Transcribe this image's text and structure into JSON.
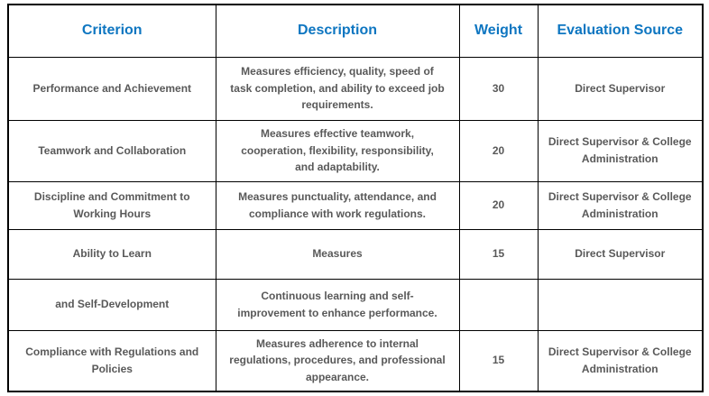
{
  "colors": {
    "header_text": "#0e76c1",
    "body_text": "#595959",
    "border": "#000000",
    "background": "#ffffff"
  },
  "table": {
    "headers": [
      "Criterion",
      "Description",
      "Weight",
      "Evaluation Source"
    ],
    "rows": [
      {
        "criterion": "Performance and Achievement",
        "description": "Measures efficiency, quality, speed of\ntask completion, and ability to exceed job\nrequirements.",
        "weight": "30",
        "source": "Direct Supervisor"
      },
      {
        "criterion": "Teamwork and Collaboration",
        "description": "Measures effective teamwork,\ncooperation, flexibility, responsibility,\nand adaptability.",
        "weight": "20",
        "source": "Direct Supervisor & College\nAdministration"
      },
      {
        "criterion": "Discipline and Commitment to\nWorking Hours",
        "description": "Measures punctuality, attendance, and\ncompliance with work regulations.",
        "weight": "20",
        "source": "Direct Supervisor & College\nAdministration"
      },
      {
        "criterion": "Ability to Learn",
        "description": "Measures",
        "weight": "15",
        "source": "Direct Supervisor"
      },
      {
        "criterion": "and Self-Development",
        "description": "Continuous learning and self-\nimprovement to enhance performance.",
        "weight": "",
        "source": ""
      },
      {
        "criterion": "Compliance with Regulations and\nPolicies",
        "description": "Measures adherence to internal\nregulations, procedures, and professional\nappearance.",
        "weight": "15",
        "source": "Direct Supervisor & College\nAdministration"
      }
    ]
  }
}
